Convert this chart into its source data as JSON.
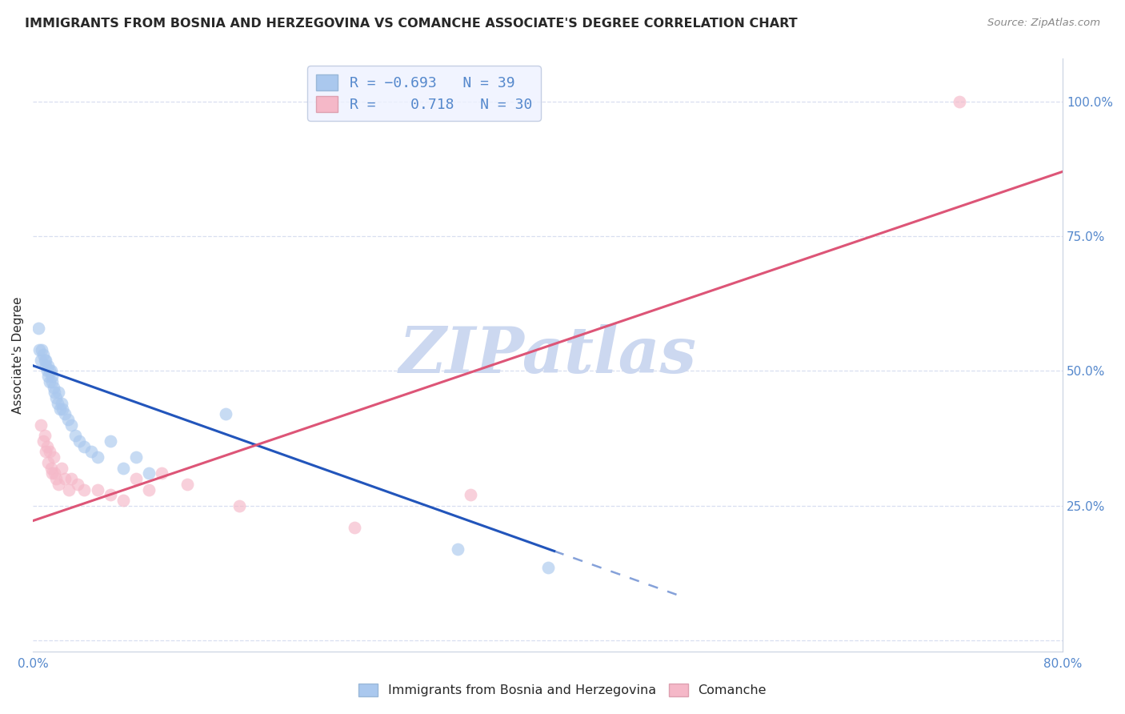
{
  "title": "IMMIGRANTS FROM BOSNIA AND HERZEGOVINA VS COMANCHE ASSOCIATE'S DEGREE CORRELATION CHART",
  "source": "Source: ZipAtlas.com",
  "ylabel": "Associate's Degree",
  "xlim": [
    0.0,
    0.8
  ],
  "ylim": [
    -0.02,
    1.08
  ],
  "yticks_right": [
    0.0,
    0.25,
    0.5,
    0.75,
    1.0
  ],
  "ytick_right_labels": [
    "",
    "25.0%",
    "50.0%",
    "75.0%",
    "100.0%"
  ],
  "blue_color": "#aac8ee",
  "pink_color": "#f5b8c8",
  "blue_line_color": "#2255bb",
  "pink_line_color": "#dd5577",
  "R_blue": -0.693,
  "N_blue": 39,
  "R_pink": 0.718,
  "N_pink": 30,
  "watermark": "ZIPatlas",
  "watermark_color": "#ccd8f0",
  "blue_scatter_x": [
    0.004,
    0.005,
    0.006,
    0.007,
    0.008,
    0.009,
    0.01,
    0.01,
    0.011,
    0.012,
    0.012,
    0.013,
    0.013,
    0.014,
    0.015,
    0.015,
    0.016,
    0.017,
    0.018,
    0.019,
    0.02,
    0.021,
    0.022,
    0.023,
    0.025,
    0.027,
    0.03,
    0.033,
    0.036,
    0.04,
    0.045,
    0.05,
    0.06,
    0.07,
    0.08,
    0.09,
    0.15,
    0.33,
    0.4
  ],
  "blue_scatter_y": [
    0.58,
    0.54,
    0.52,
    0.54,
    0.53,
    0.52,
    0.51,
    0.52,
    0.5,
    0.51,
    0.49,
    0.5,
    0.48,
    0.5,
    0.49,
    0.48,
    0.47,
    0.46,
    0.45,
    0.44,
    0.46,
    0.43,
    0.44,
    0.43,
    0.42,
    0.41,
    0.4,
    0.38,
    0.37,
    0.36,
    0.35,
    0.34,
    0.37,
    0.32,
    0.34,
    0.31,
    0.42,
    0.17,
    0.135
  ],
  "pink_scatter_x": [
    0.006,
    0.008,
    0.009,
    0.01,
    0.011,
    0.012,
    0.013,
    0.014,
    0.015,
    0.016,
    0.017,
    0.018,
    0.02,
    0.022,
    0.025,
    0.028,
    0.03,
    0.035,
    0.04,
    0.05,
    0.06,
    0.07,
    0.08,
    0.09,
    0.1,
    0.12,
    0.16,
    0.25,
    0.34,
    0.72
  ],
  "pink_scatter_y": [
    0.4,
    0.37,
    0.38,
    0.35,
    0.36,
    0.33,
    0.35,
    0.32,
    0.31,
    0.34,
    0.31,
    0.3,
    0.29,
    0.32,
    0.3,
    0.28,
    0.3,
    0.29,
    0.28,
    0.28,
    0.27,
    0.26,
    0.3,
    0.28,
    0.31,
    0.29,
    0.25,
    0.21,
    0.27,
    1.0
  ],
  "blue_line_x0": 0.0,
  "blue_line_x1": 0.5,
  "blue_line_y0": 0.51,
  "blue_line_y1": 0.085,
  "blue_line_solid_end": 0.405,
  "pink_line_x0": 0.0,
  "pink_line_x1": 0.8,
  "pink_line_y0": 0.222,
  "pink_line_y1": 0.87,
  "legend_box_color": "#eef2ff",
  "legend_border_color": "#b8c4dc",
  "title_color": "#282828",
  "axis_label_color": "#282828",
  "tick_color": "#5588cc",
  "grid_color": "#d8dff0",
  "bg_color": "#ffffff",
  "scatter_size": 130,
  "scatter_alpha": 0.65
}
